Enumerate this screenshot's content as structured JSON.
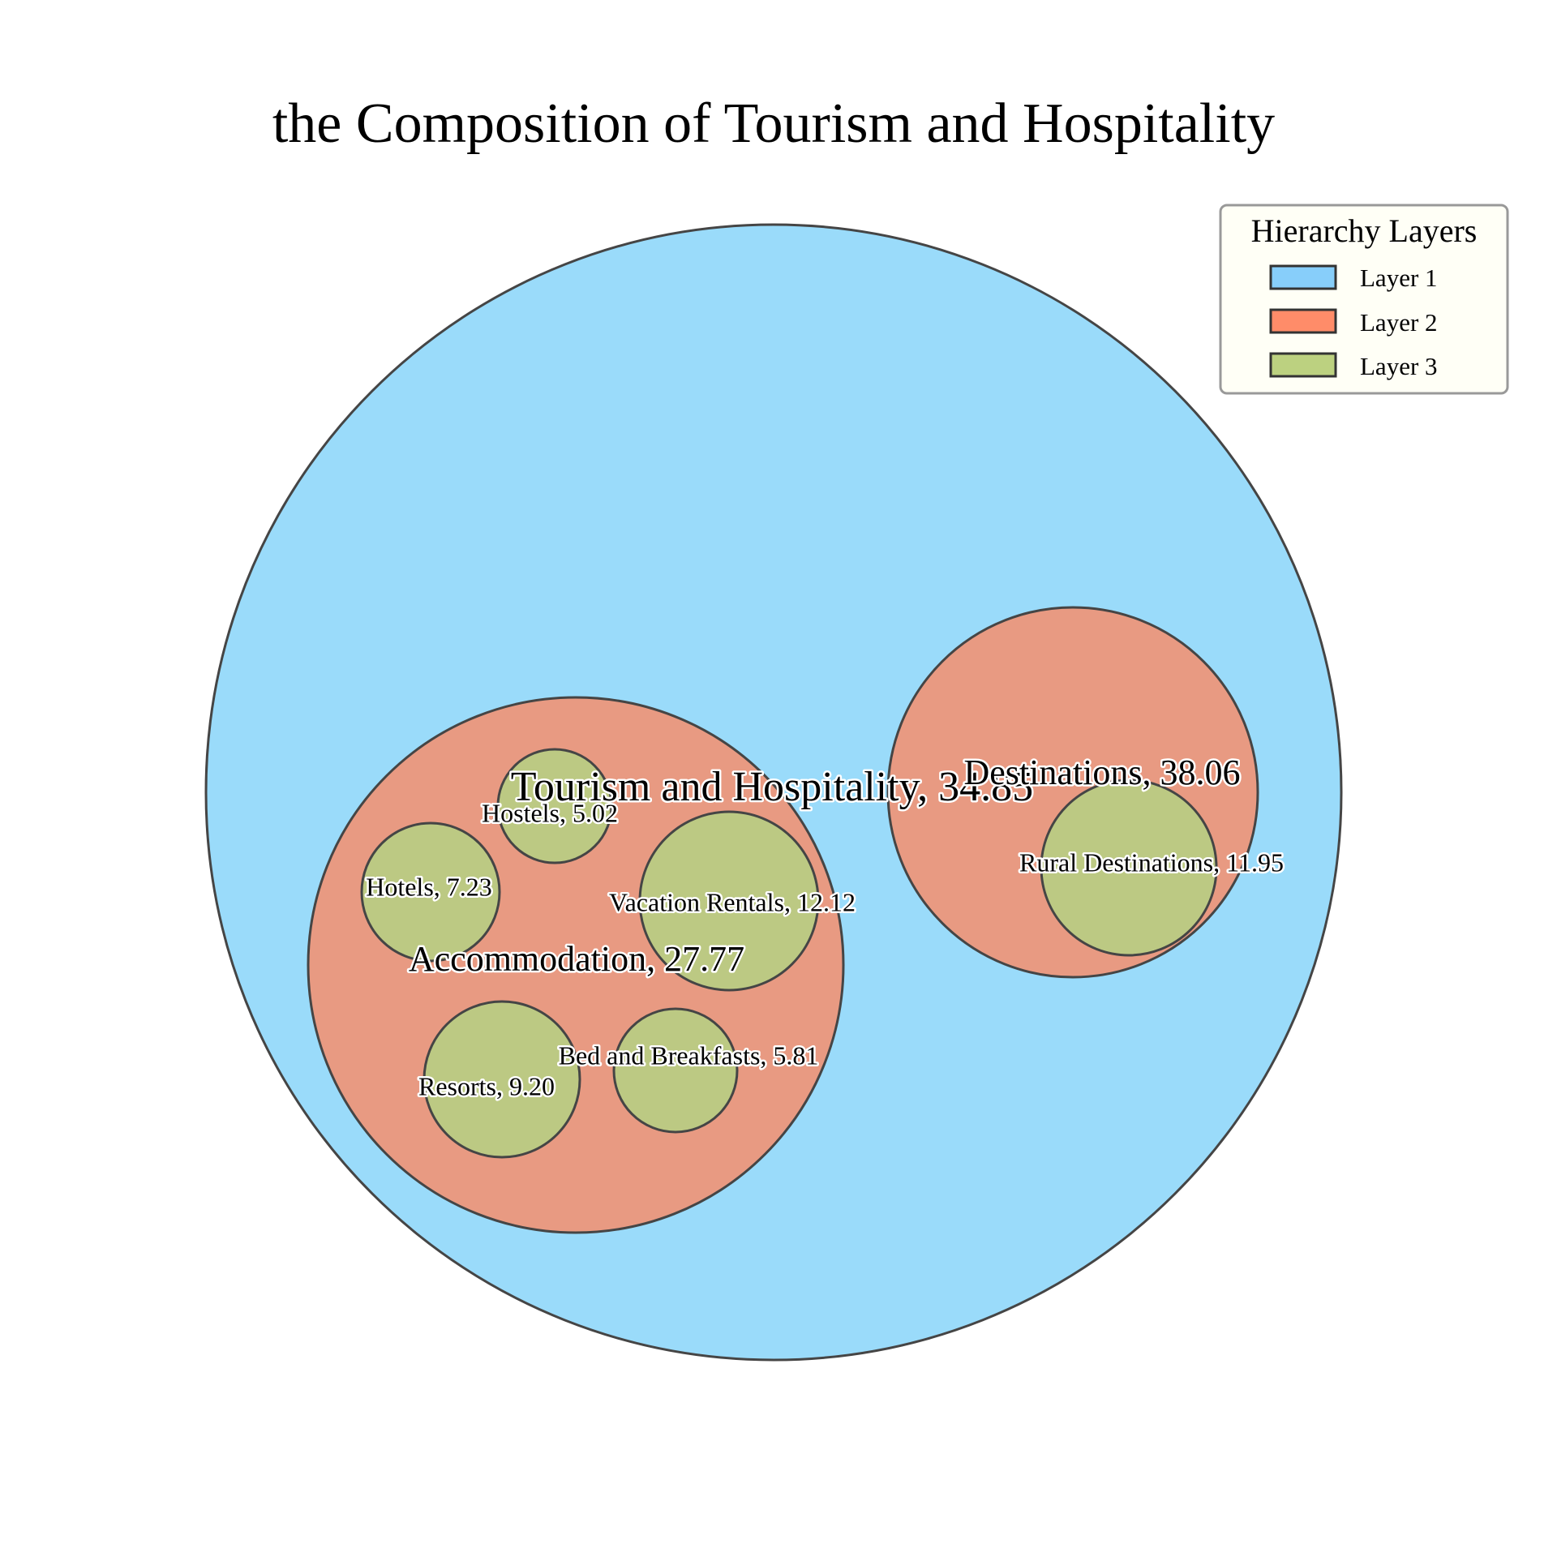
{
  "chart_data": {
    "type": "bubble-hierarchy",
    "title": "the Composition of Tourism and Hospitality",
    "legend": {
      "title": "Hierarchy Layers",
      "placement": "top-right",
      "entries": [
        {
          "label": "Layer 1",
          "color": "#87cefa"
        },
        {
          "label": "Layer 2",
          "color": "#ff8c69"
        },
        {
          "label": "Layer 3",
          "color": "#bcd180"
        }
      ]
    },
    "layer_fill_colors": {
      "1": "#9adbfa",
      "2": "#e89a82",
      "3": "#bcc983"
    },
    "nodes": [
      {
        "label": "Tourism and Hospitality, 34.85",
        "name": "Tourism and Hospitality",
        "value": 34.85,
        "layer": 1
      },
      {
        "label": "Accommodation, 27.77",
        "name": "Accommodation",
        "value": 27.77,
        "layer": 2,
        "parent": "Tourism and Hospitality"
      },
      {
        "label": "Destinations, 38.06",
        "name": "Destinations",
        "value": 38.06,
        "layer": 2,
        "parent": "Tourism and Hospitality"
      },
      {
        "label": "Hostels, 5.02",
        "name": "Hostels",
        "value": 5.02,
        "layer": 3,
        "parent": "Accommodation"
      },
      {
        "label": "Hotels, 7.23",
        "name": "Hotels",
        "value": 7.23,
        "layer": 3,
        "parent": "Accommodation"
      },
      {
        "label": "Vacation Rentals, 12.12",
        "name": "Vacation Rentals",
        "value": 12.12,
        "layer": 3,
        "parent": "Accommodation"
      },
      {
        "label": "Resorts, 9.20",
        "name": "Resorts",
        "value": 9.2,
        "layer": 3,
        "parent": "Accommodation"
      },
      {
        "label": "Bed and Breakfasts, 5.81",
        "name": "Bed and Breakfasts",
        "value": 5.81,
        "layer": 3,
        "parent": "Accommodation"
      },
      {
        "label": "Rural Destinations, 11.95",
        "name": "Rural Destinations",
        "value": 11.95,
        "layer": 3,
        "parent": "Destinations"
      }
    ]
  }
}
